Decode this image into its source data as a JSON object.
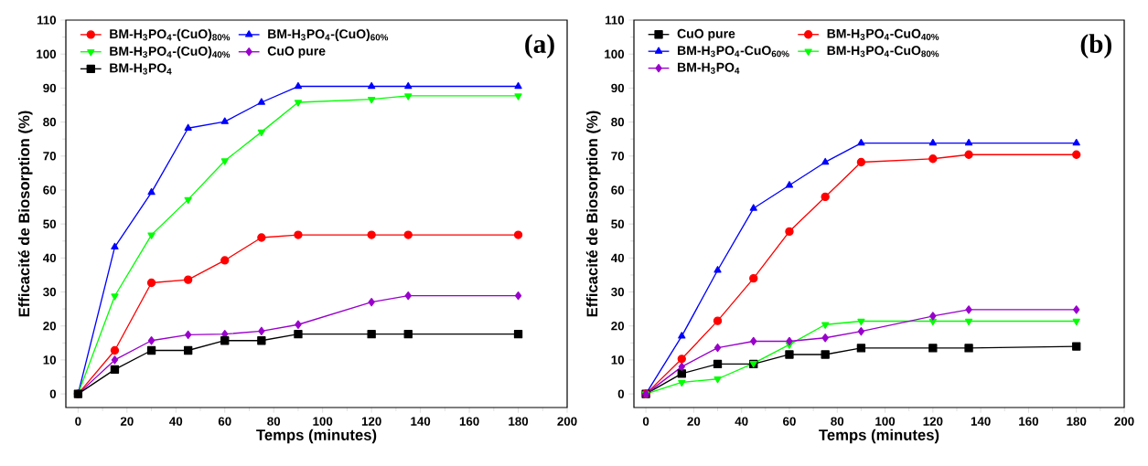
{
  "chart_data": [
    {
      "type": "line",
      "xlabel": "Temps (minutes)",
      "ylabel": "Efficacité de Biosorption (%)",
      "annotations": [
        "(a)"
      ],
      "x": [
        0,
        15,
        30,
        45,
        60,
        75,
        90,
        120,
        135,
        180
      ],
      "series": [
        {
          "name": "BM-H$_{3}$PO$_{4}$-(CuO)$_{80%}$",
          "color": "#ff0000",
          "marker": "circle",
          "values": [
            0,
            12.8,
            32.7,
            33.6,
            39.3,
            46,
            46.8,
            46.8,
            46.8,
            46.8
          ]
        },
        {
          "name": "BM-H$_{3}$PO$_{4}$-(CuO)$_{60%}$",
          "color": "#0000ff",
          "marker": "triangle",
          "values": [
            0,
            43.2,
            59.3,
            78.2,
            80.1,
            85.8,
            90.5,
            90.5,
            90.5,
            90.5
          ]
        },
        {
          "name": "BM-H$_{3}$PO$_{4}$-(CuO)$_{40%}$",
          "color": "#00ff00",
          "marker": "triangle-down",
          "values": [
            0,
            28.8,
            46.8,
            57.2,
            68.6,
            77.1,
            85.8,
            86.7,
            87.7,
            87.7
          ]
        },
        {
          "name": "CuO pure",
          "color": "#9900cc",
          "marker": "diamond",
          "values": [
            0,
            10,
            15.7,
            17.4,
            17.6,
            18.5,
            20.4,
            27,
            28.9,
            28.9
          ]
        },
        {
          "name": "BM-H$_{3}$PO$_{4}$",
          "color": "#000000",
          "marker": "square",
          "values": [
            0,
            7.2,
            12.8,
            12.8,
            15.7,
            15.7,
            17.6,
            17.6,
            17.6,
            17.6
          ]
        }
      ],
      "xlim": [
        -5,
        200
      ],
      "ylim": [
        -4,
        110
      ],
      "xticks": [
        0,
        20,
        40,
        60,
        80,
        100,
        120,
        140,
        160,
        180,
        200
      ],
      "yticks": [
        0,
        10,
        20,
        30,
        40,
        50,
        60,
        70,
        80,
        90,
        100,
        110
      ],
      "legend": "top left",
      "grid": false,
      "line_style": "solid"
    },
    {
      "type": "line",
      "xlabel": "Temps (minutes)",
      "ylabel": "Efficacité de Biosorption (%)",
      "annotations": [
        "(b)"
      ],
      "x": [
        0,
        15,
        30,
        45,
        60,
        75,
        90,
        120,
        135,
        180
      ],
      "series": [
        {
          "name": "CuO pure",
          "color": "#000000",
          "marker": "square",
          "values": [
            0,
            6,
            8.8,
            8.8,
            11.6,
            11.6,
            13.5,
            13.5,
            13.5,
            14
          ]
        },
        {
          "name": "BM-H$_{3}$PO$_{4}$-CuO$_{40%}$",
          "color": "#ff0000",
          "marker": "circle",
          "values": [
            0,
            10.3,
            21.5,
            34,
            47.8,
            58,
            68.2,
            69.2,
            70.4,
            70.4
          ]
        },
        {
          "name": "BM-H$_{3}$PO$_{4}$-CuO$_{60%}$",
          "color": "#0000ff",
          "marker": "triangle",
          "values": [
            0,
            17,
            36.4,
            54.6,
            61.4,
            68.2,
            73.8,
            73.8,
            73.8,
            73.8
          ]
        },
        {
          "name": "BM-H$_{3}$PO$_{4}$-CuO$_{80%}$",
          "color": "#00ff00",
          "marker": "triangle-down",
          "values": [
            0,
            3.4,
            4.4,
            9,
            14.5,
            20.4,
            21.4,
            21.4,
            21.4,
            21.4
          ]
        },
        {
          "name": "BM-H$_{3}$PO$_{4}$",
          "color": "#9900cc",
          "marker": "diamond",
          "values": [
            0,
            8,
            13.6,
            15.5,
            15.5,
            16.5,
            18.4,
            22.9,
            24.8,
            24.8
          ]
        }
      ],
      "xlim": [
        -5,
        200
      ],
      "ylim": [
        -4,
        110
      ],
      "xticks": [
        0,
        20,
        40,
        60,
        80,
        100,
        120,
        140,
        160,
        180,
        200
      ],
      "yticks": [
        0,
        10,
        20,
        30,
        40,
        50,
        60,
        70,
        80,
        90,
        100,
        110
      ],
      "legend": "top left",
      "grid": false,
      "line_style": "solid"
    }
  ]
}
